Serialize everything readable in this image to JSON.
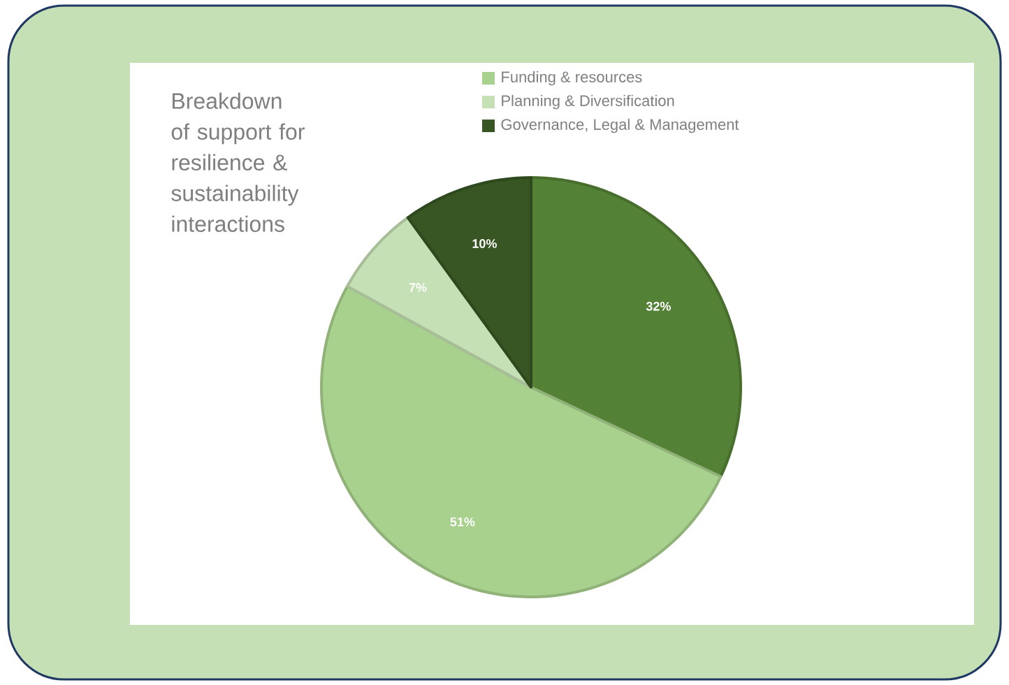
{
  "chart_data": {
    "type": "pie",
    "title": "Breakdown of support for resilience & sustainability interactions",
    "categories": [
      null,
      "Funding & resources",
      "Planning & Diversification",
      "Governance, Legal & Management"
    ],
    "values": [
      32,
      51,
      7,
      10
    ],
    "value_labels": [
      "32%",
      "51%",
      "7%",
      "10%"
    ],
    "colors": [
      "#538135",
      "#a9d18e",
      "#c5e0b4",
      "#375623"
    ],
    "legend": "top right"
  }
}
